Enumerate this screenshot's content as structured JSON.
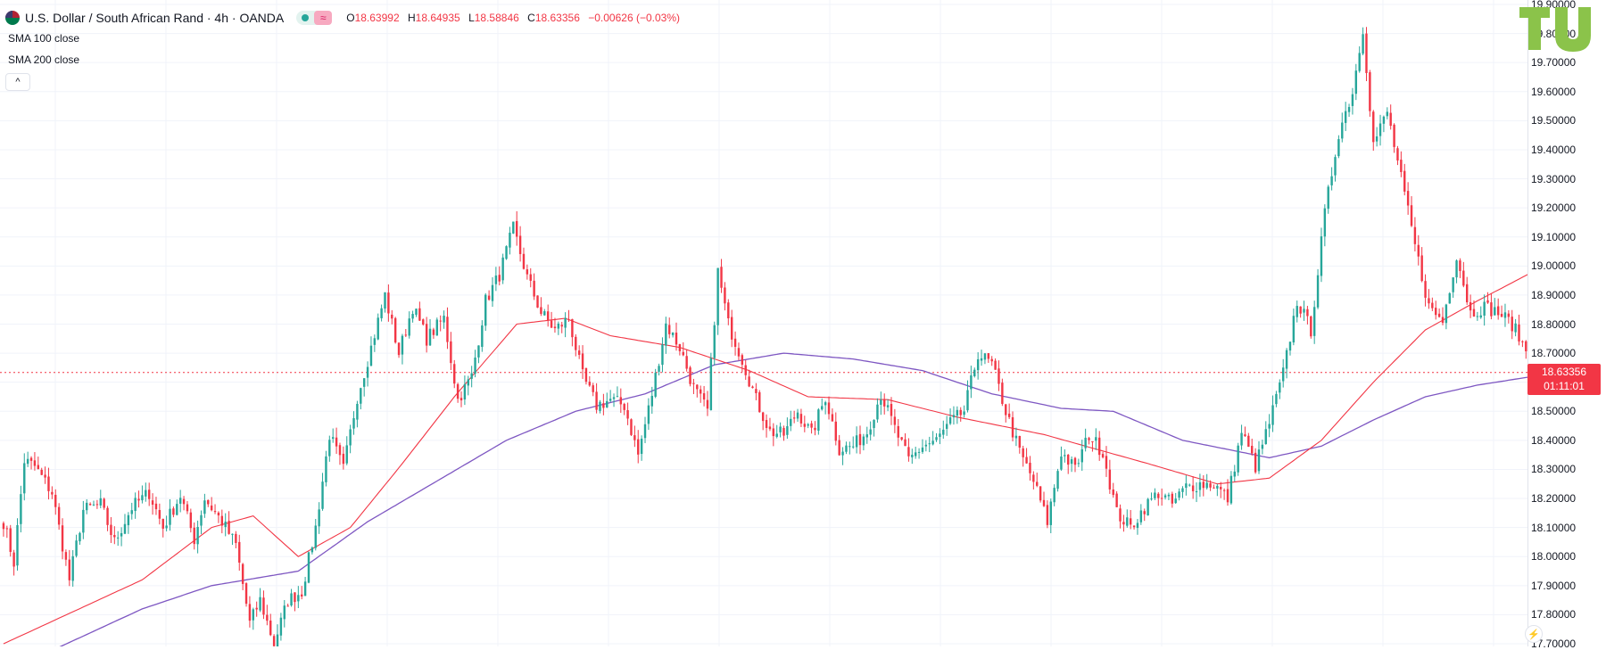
{
  "header": {
    "symbol_title": "U.S. Dollar / South African Rand · 4h · OANDA",
    "wave_glyph": "≈",
    "open_label": "O",
    "open": "18.63992",
    "high_label": "H",
    "high": "18.64935",
    "low_label": "L",
    "low": "18.58846",
    "close_label": "C",
    "close": "18.63356",
    "change": "−0.00626 (−0.03%)"
  },
  "indicators": {
    "sma100": "SMA 100 close",
    "sma200": "SMA 200 close",
    "collapse_glyph": "^"
  },
  "price_tag": {
    "price": "18.63356",
    "countdown": "01:11:01"
  },
  "colors": {
    "up": "#26a69a",
    "down": "#f23645",
    "sma100": "#f23645",
    "sma200": "#7e57c2",
    "logo": "#8bc34a"
  },
  "chart_data": {
    "type": "candlestick",
    "ylim": [
      17.7,
      19.9
    ],
    "y_ticks": [
      "17.70000",
      "17.80000",
      "17.90000",
      "18.00000",
      "18.10000",
      "18.20000",
      "18.30000",
      "18.40000",
      "18.50000",
      "18.60000",
      "18.70000",
      "18.80000",
      "18.90000",
      "19.00000",
      "19.10000",
      "19.20000",
      "19.30000",
      "19.40000",
      "19.50000",
      "19.60000",
      "19.70000",
      "19.80000",
      "19.90000"
    ],
    "y_tick_values": [
      17.7,
      17.8,
      17.9,
      18.0,
      18.1,
      18.2,
      18.3,
      18.4,
      18.5,
      18.6,
      18.7,
      18.8,
      18.9,
      19.0,
      19.1,
      19.2,
      19.3,
      19.4,
      19.5,
      19.6,
      19.7,
      19.8,
      19.9
    ],
    "last_price": 18.63356,
    "price_path": [
      [
        0,
        18.12
      ],
      [
        3,
        17.98
      ],
      [
        6,
        18.33
      ],
      [
        9,
        18.31
      ],
      [
        14,
        18.22
      ],
      [
        19,
        17.92
      ],
      [
        23,
        18.16
      ],
      [
        28,
        18.18
      ],
      [
        32,
        18.05
      ],
      [
        37,
        18.17
      ],
      [
        42,
        18.22
      ],
      [
        46,
        18.1
      ],
      [
        51,
        18.21
      ],
      [
        55,
        18.06
      ],
      [
        58,
        18.2
      ],
      [
        63,
        18.12
      ],
      [
        67,
        18.04
      ],
      [
        71,
        17.77
      ],
      [
        74,
        17.85
      ],
      [
        78,
        17.7
      ],
      [
        82,
        17.85
      ],
      [
        86,
        17.88
      ],
      [
        90,
        18.1
      ],
      [
        94,
        18.42
      ],
      [
        98,
        18.3
      ],
      [
        102,
        18.55
      ],
      [
        106,
        18.72
      ],
      [
        110,
        18.9
      ],
      [
        114,
        18.7
      ],
      [
        118,
        18.86
      ],
      [
        122,
        18.75
      ],
      [
        127,
        18.82
      ],
      [
        131,
        18.54
      ],
      [
        135,
        18.62
      ],
      [
        139,
        18.88
      ],
      [
        143,
        18.97
      ],
      [
        147,
        19.13
      ],
      [
        151,
        18.96
      ],
      [
        155,
        18.84
      ],
      [
        159,
        18.78
      ],
      [
        163,
        18.82
      ],
      [
        167,
        18.62
      ],
      [
        171,
        18.52
      ],
      [
        175,
        18.54
      ],
      [
        179,
        18.52
      ],
      [
        183,
        18.35
      ],
      [
        187,
        18.56
      ],
      [
        191,
        18.8
      ],
      [
        195,
        18.72
      ],
      [
        199,
        18.58
      ],
      [
        203,
        18.5
      ],
      [
        206,
        18.98
      ],
      [
        209,
        18.8
      ],
      [
        213,
        18.68
      ],
      [
        217,
        18.54
      ],
      [
        221,
        18.43
      ],
      [
        225,
        18.42
      ],
      [
        229,
        18.5
      ],
      [
        233,
        18.42
      ],
      [
        237,
        18.55
      ],
      [
        241,
        18.37
      ],
      [
        245,
        18.38
      ],
      [
        249,
        18.43
      ],
      [
        253,
        18.56
      ],
      [
        257,
        18.44
      ],
      [
        261,
        18.33
      ],
      [
        265,
        18.38
      ],
      [
        269,
        18.4
      ],
      [
        273,
        18.46
      ],
      [
        277,
        18.5
      ],
      [
        281,
        18.7
      ],
      [
        285,
        18.66
      ],
      [
        289,
        18.5
      ],
      [
        293,
        18.36
      ],
      [
        297,
        18.26
      ],
      [
        301,
        18.12
      ],
      [
        305,
        18.36
      ],
      [
        309,
        18.3
      ],
      [
        313,
        18.42
      ],
      [
        317,
        18.36
      ],
      [
        321,
        18.15
      ],
      [
        325,
        18.1
      ],
      [
        329,
        18.17
      ],
      [
        333,
        18.22
      ],
      [
        337,
        18.18
      ],
      [
        341,
        18.24
      ],
      [
        345,
        18.25
      ],
      [
        349,
        18.25
      ],
      [
        353,
        18.2
      ],
      [
        357,
        18.43
      ],
      [
        361,
        18.31
      ],
      [
        365,
        18.46
      ],
      [
        369,
        18.63
      ],
      [
        373,
        18.88
      ],
      [
        377,
        18.78
      ],
      [
        381,
        19.18
      ],
      [
        385,
        19.46
      ],
      [
        389,
        19.6
      ],
      [
        392,
        19.82
      ],
      [
        395,
        19.42
      ],
      [
        399,
        19.53
      ],
      [
        403,
        19.3
      ],
      [
        407,
        19.07
      ],
      [
        411,
        18.86
      ],
      [
        415,
        18.81
      ],
      [
        419,
        19.04
      ],
      [
        423,
        18.84
      ],
      [
        427,
        18.86
      ],
      [
        431,
        18.84
      ],
      [
        435,
        18.8
      ],
      [
        439,
        18.71
      ],
      [
        441,
        18.63
      ]
    ],
    "sma100_path": [
      [
        0,
        17.7
      ],
      [
        40,
        17.92
      ],
      [
        60,
        18.1
      ],
      [
        72,
        18.14
      ],
      [
        85,
        18.0
      ],
      [
        100,
        18.1
      ],
      [
        115,
        18.32
      ],
      [
        130,
        18.55
      ],
      [
        148,
        18.8
      ],
      [
        162,
        18.82
      ],
      [
        175,
        18.76
      ],
      [
        195,
        18.72
      ],
      [
        215,
        18.64
      ],
      [
        232,
        18.55
      ],
      [
        255,
        18.54
      ],
      [
        275,
        18.48
      ],
      [
        300,
        18.42
      ],
      [
        330,
        18.32
      ],
      [
        350,
        18.25
      ],
      [
        365,
        18.27
      ],
      [
        380,
        18.4
      ],
      [
        395,
        18.6
      ],
      [
        410,
        18.78
      ],
      [
        425,
        18.88
      ],
      [
        441,
        18.98
      ]
    ],
    "sma200_path": [
      [
        0,
        17.6
      ],
      [
        40,
        17.82
      ],
      [
        60,
        17.9
      ],
      [
        85,
        17.95
      ],
      [
        105,
        18.12
      ],
      [
        125,
        18.26
      ],
      [
        145,
        18.4
      ],
      [
        165,
        18.5
      ],
      [
        185,
        18.56
      ],
      [
        205,
        18.66
      ],
      [
        225,
        18.7
      ],
      [
        245,
        18.68
      ],
      [
        265,
        18.64
      ],
      [
        285,
        18.56
      ],
      [
        305,
        18.51
      ],
      [
        320,
        18.5
      ],
      [
        340,
        18.4
      ],
      [
        365,
        18.34
      ],
      [
        380,
        18.38
      ],
      [
        395,
        18.47
      ],
      [
        410,
        18.55
      ],
      [
        425,
        18.59
      ],
      [
        441,
        18.62
      ]
    ]
  },
  "logo": {
    "text": "TU"
  },
  "bolt_glyph": "⚡"
}
